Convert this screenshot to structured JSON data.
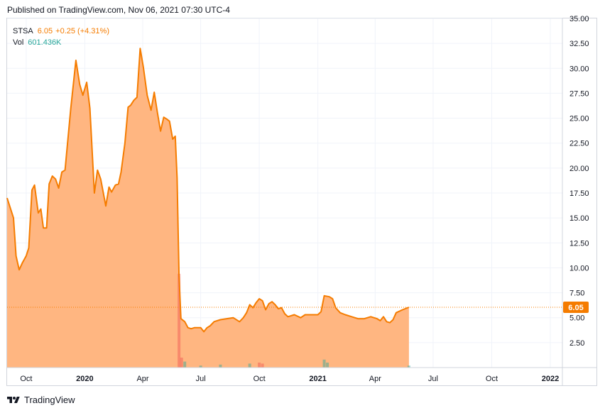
{
  "header": {
    "published": "Published on TradingView.com, Nov 06, 2021 07:30 UTC-4"
  },
  "legend": {
    "symbol": "STSA",
    "last": "6.05",
    "change": "+0.25 (+4.31%)",
    "vol_label": "Vol",
    "vol_value": "601.436K"
  },
  "price_badge": "6.05",
  "footer": {
    "brand": "TradingView"
  },
  "colors": {
    "line": "#f57c00",
    "area": "#ffb27a",
    "badge": "#f57c00",
    "volume": "#26a69a",
    "volume_red": "#ef5350"
  },
  "chart_data": {
    "type": "area",
    "title": "",
    "xlabel": "",
    "ylabel": "",
    "ylim": [
      0,
      35
    ],
    "ytick_labels": [
      "2.50",
      "5.00",
      "7.50",
      "10.00",
      "12.50",
      "15.00",
      "17.50",
      "20.00",
      "22.50",
      "25.00",
      "27.50",
      "30.00",
      "32.50",
      "35.00"
    ],
    "xtick_labels": [
      {
        "label": "Oct",
        "x": "2019-10",
        "bold": false
      },
      {
        "label": "2020",
        "x": "2020-01",
        "bold": true
      },
      {
        "label": "Apr",
        "x": "2020-04",
        "bold": false
      },
      {
        "label": "Jul",
        "x": "2020-07",
        "bold": false
      },
      {
        "label": "Oct",
        "x": "2020-10",
        "bold": false
      },
      {
        "label": "2021",
        "x": "2021-01",
        "bold": true
      },
      {
        "label": "Apr",
        "x": "2021-04",
        "bold": false
      },
      {
        "label": "Jul",
        "x": "2021-07",
        "bold": false
      },
      {
        "label": "Oct",
        "x": "2021-10",
        "bold": false
      },
      {
        "label": "2022",
        "x": "2022-01",
        "bold": true
      }
    ],
    "x_range": [
      "2019-09-01",
      "2022-01-20"
    ],
    "grid": true,
    "last_price_line": 6.05,
    "series": [
      {
        "points": [
          [
            "2019-09-01",
            17.0
          ],
          [
            "2019-09-11",
            15.0
          ],
          [
            "2019-09-15",
            11.2
          ],
          [
            "2019-09-20",
            9.8
          ],
          [
            "2019-09-25",
            10.5
          ],
          [
            "2019-10-01",
            11.2
          ],
          [
            "2019-10-05",
            12.0
          ],
          [
            "2019-10-10",
            17.8
          ],
          [
            "2019-10-14",
            18.3
          ],
          [
            "2019-10-20",
            15.5
          ],
          [
            "2019-10-24",
            15.9
          ],
          [
            "2019-10-28",
            14.0
          ],
          [
            "2019-11-02",
            14.0
          ],
          [
            "2019-11-06",
            18.4
          ],
          [
            "2019-11-11",
            19.2
          ],
          [
            "2019-11-16",
            18.9
          ],
          [
            "2019-11-21",
            18.0
          ],
          [
            "2019-11-26",
            19.6
          ],
          [
            "2019-12-01",
            19.8
          ],
          [
            "2019-12-10",
            26.0
          ],
          [
            "2019-12-18",
            30.8
          ],
          [
            "2019-12-24",
            28.4
          ],
          [
            "2019-12-29",
            27.3
          ],
          [
            "2020-01-04",
            28.6
          ],
          [
            "2020-01-09",
            26.0
          ],
          [
            "2020-01-16",
            17.5
          ],
          [
            "2020-01-21",
            19.8
          ],
          [
            "2020-01-26",
            18.9
          ],
          [
            "2020-02-03",
            16.2
          ],
          [
            "2020-02-08",
            18.1
          ],
          [
            "2020-02-12",
            17.6
          ],
          [
            "2020-02-18",
            18.3
          ],
          [
            "2020-02-23",
            18.4
          ],
          [
            "2020-02-27",
            19.6
          ],
          [
            "2020-03-04",
            22.5
          ],
          [
            "2020-03-09",
            26.1
          ],
          [
            "2020-03-13",
            26.3
          ],
          [
            "2020-03-18",
            26.8
          ],
          [
            "2020-03-23",
            27.1
          ],
          [
            "2020-03-28",
            32.0
          ],
          [
            "2020-04-02",
            30.1
          ],
          [
            "2020-04-08",
            27.3
          ],
          [
            "2020-04-14",
            25.8
          ],
          [
            "2020-04-19",
            27.6
          ],
          [
            "2020-04-24",
            25.6
          ],
          [
            "2020-04-29",
            23.7
          ],
          [
            "2020-05-04",
            25.1
          ],
          [
            "2020-05-09",
            24.9
          ],
          [
            "2020-05-13",
            24.7
          ],
          [
            "2020-05-18",
            22.9
          ],
          [
            "2020-05-22",
            23.2
          ],
          [
            "2020-05-25",
            19.0
          ],
          [
            "2020-05-28",
            9.2
          ],
          [
            "2020-05-31",
            4.9
          ],
          [
            "2020-06-06",
            4.6
          ],
          [
            "2020-06-11",
            4.0
          ],
          [
            "2020-06-16",
            3.9
          ],
          [
            "2020-06-21",
            4.0
          ],
          [
            "2020-06-26",
            4.0
          ],
          [
            "2020-07-01",
            4.0
          ],
          [
            "2020-07-06",
            3.6
          ],
          [
            "2020-07-11",
            4.0
          ],
          [
            "2020-07-16",
            4.2
          ],
          [
            "2020-07-22",
            4.6
          ],
          [
            "2020-08-01",
            4.8
          ],
          [
            "2020-08-11",
            4.9
          ],
          [
            "2020-08-21",
            5.0
          ],
          [
            "2020-08-31",
            4.6
          ],
          [
            "2020-09-06",
            5.0
          ],
          [
            "2020-09-11",
            5.5
          ],
          [
            "2020-09-16",
            6.3
          ],
          [
            "2020-09-21",
            6.0
          ],
          [
            "2020-09-26",
            6.5
          ],
          [
            "2020-10-01",
            6.9
          ],
          [
            "2020-10-06",
            6.7
          ],
          [
            "2020-10-11",
            5.8
          ],
          [
            "2020-10-16",
            6.4
          ],
          [
            "2020-10-21",
            6.6
          ],
          [
            "2020-10-26",
            6.3
          ],
          [
            "2020-10-31",
            5.9
          ],
          [
            "2020-11-05",
            6.0
          ],
          [
            "2020-11-10",
            5.4
          ],
          [
            "2020-11-15",
            5.1
          ],
          [
            "2020-11-25",
            5.3
          ],
          [
            "2020-12-05",
            5.0
          ],
          [
            "2020-12-12",
            5.3
          ],
          [
            "2020-12-22",
            5.3
          ],
          [
            "2021-01-01",
            5.3
          ],
          [
            "2021-01-06",
            5.6
          ],
          [
            "2021-01-11",
            7.2
          ],
          [
            "2021-01-19",
            7.1
          ],
          [
            "2021-01-24",
            6.9
          ],
          [
            "2021-01-29",
            6.0
          ],
          [
            "2021-02-05",
            5.5
          ],
          [
            "2021-02-13",
            5.3
          ],
          [
            "2021-02-23",
            5.1
          ],
          [
            "2021-03-05",
            4.9
          ],
          [
            "2021-03-15",
            4.9
          ],
          [
            "2021-03-25",
            5.1
          ],
          [
            "2021-04-04",
            4.9
          ],
          [
            "2021-04-09",
            4.7
          ],
          [
            "2021-04-14",
            5.1
          ],
          [
            "2021-04-19",
            4.6
          ],
          [
            "2021-04-24",
            4.5
          ],
          [
            "2021-04-29",
            4.8
          ],
          [
            "2021-05-04",
            5.5
          ],
          [
            "2021-05-14",
            5.8
          ],
          [
            "2021-05-24",
            6.05
          ]
        ]
      }
    ],
    "volume_bars": [
      [
        "2020-05-28",
        9.4,
        "red"
      ],
      [
        "2020-06-01",
        1.0,
        "red"
      ],
      [
        "2020-06-06",
        0.6,
        "green"
      ],
      [
        "2020-07-01",
        0.2,
        "green"
      ],
      [
        "2020-08-01",
        0.3,
        "green"
      ],
      [
        "2020-09-16",
        0.4,
        "green"
      ],
      [
        "2020-10-01",
        0.5,
        "red"
      ],
      [
        "2020-10-06",
        0.4,
        "red"
      ],
      [
        "2021-01-11",
        0.8,
        "green"
      ],
      [
        "2021-01-16",
        0.5,
        "green"
      ],
      [
        "2021-05-24",
        0.2,
        "green"
      ]
    ]
  }
}
